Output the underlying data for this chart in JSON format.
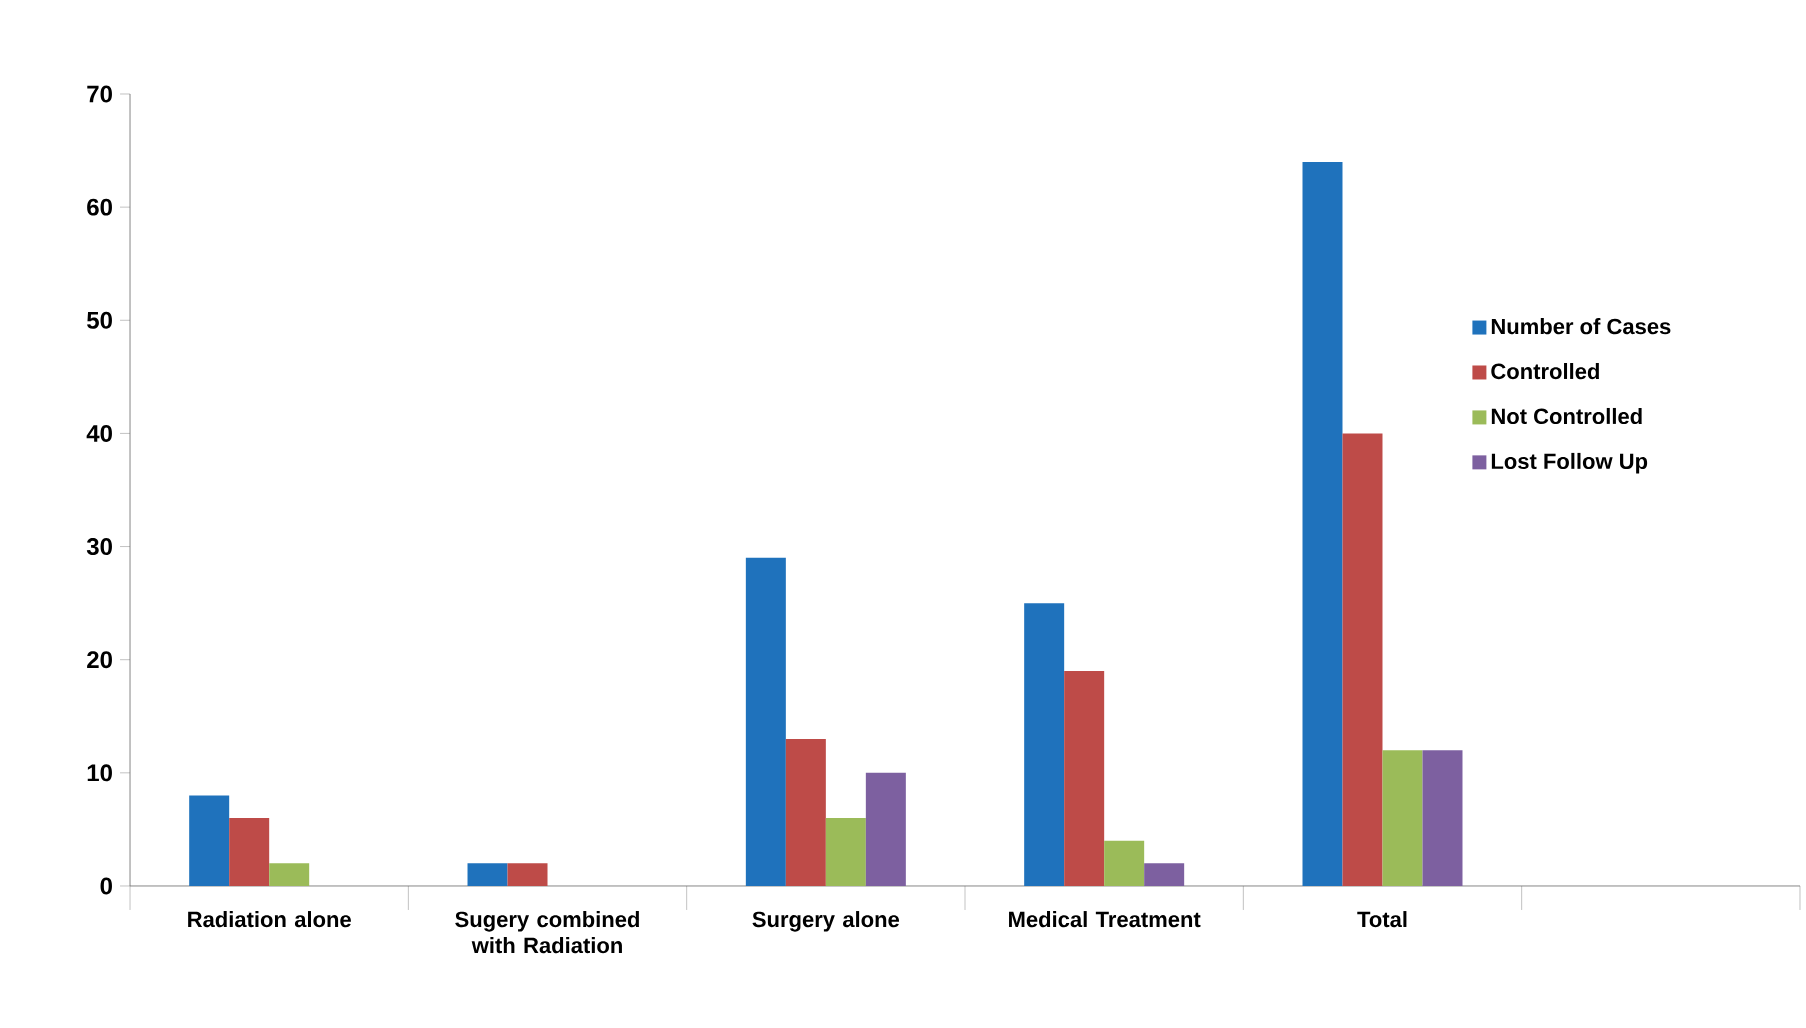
{
  "chart_data": {
    "type": "bar",
    "categories": [
      "Radiation alone",
      "Sugery combined with Radiation",
      "Surgery alone",
      "Medical Treatment",
      "Total",
      null
    ],
    "series": [
      {
        "name": "Number of Cases",
        "color": "#1f72bc",
        "values": [
          8,
          2,
          29,
          25,
          64,
          null
        ]
      },
      {
        "name": "Controlled",
        "color": "#be4b48",
        "values": [
          6,
          2,
          13,
          19,
          40,
          null
        ]
      },
      {
        "name": "Not Controlled",
        "color": "#9bbb59",
        "values": [
          2,
          0,
          6,
          4,
          12,
          null
        ]
      },
      {
        "name": "Lost Follow Up",
        "color": "#7d60a0",
        "values": [
          0,
          0,
          10,
          2,
          12,
          null
        ]
      }
    ],
    "ylim": [
      0,
      70
    ],
    "yticks": [
      0,
      10,
      20,
      30,
      40,
      50,
      60,
      70
    ],
    "grid": false,
    "legend": "right"
  }
}
